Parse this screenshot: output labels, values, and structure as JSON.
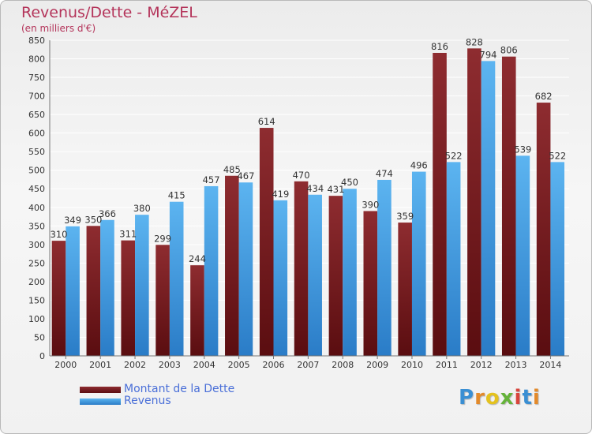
{
  "header": {
    "title": "Revenus/Dette - MéZEL",
    "subtitle": "(en milliers d'€)"
  },
  "brand": "Proxiti",
  "chart_data": {
    "type": "bar",
    "title": "Revenus/Dette - MéZEL",
    "subtitle": "(en milliers d'€)",
    "categories": [
      "2000",
      "2001",
      "2002",
      "2003",
      "2004",
      "2005",
      "2006",
      "2007",
      "2008",
      "2009",
      "2010",
      "2011",
      "2012",
      "2013",
      "2014"
    ],
    "series": [
      {
        "name": "Montant de la Dette",
        "color": "#7a1f22",
        "values": [
          310,
          350,
          311,
          299,
          244,
          485,
          614,
          470,
          431,
          390,
          359,
          816,
          828,
          806,
          682
        ],
        "labels": [
          "310",
          "350",
          "311",
          "299",
          "244",
          "485",
          "614",
          "470",
          "431",
          "390",
          "359",
          "816",
          "828",
          "806",
          "682"
        ]
      },
      {
        "name": "Revenus",
        "color": "#4aa3e3",
        "values": [
          349,
          366,
          380,
          415,
          457,
          467,
          419,
          434,
          450,
          474,
          496,
          522,
          794,
          539,
          522
        ],
        "labels": [
          "349",
          "366",
          "380",
          "415",
          "457",
          "467",
          "419",
          "434",
          "450",
          "474",
          "496",
          "522",
          "794",
          "539",
          "522"
        ]
      }
    ],
    "ylim": [
      0,
      850
    ],
    "yticks": [
      0,
      50,
      100,
      150,
      200,
      250,
      300,
      350,
      400,
      450,
      500,
      550,
      600,
      650,
      700,
      750,
      800,
      850
    ],
    "grid": true,
    "legend": "bottom-left"
  }
}
